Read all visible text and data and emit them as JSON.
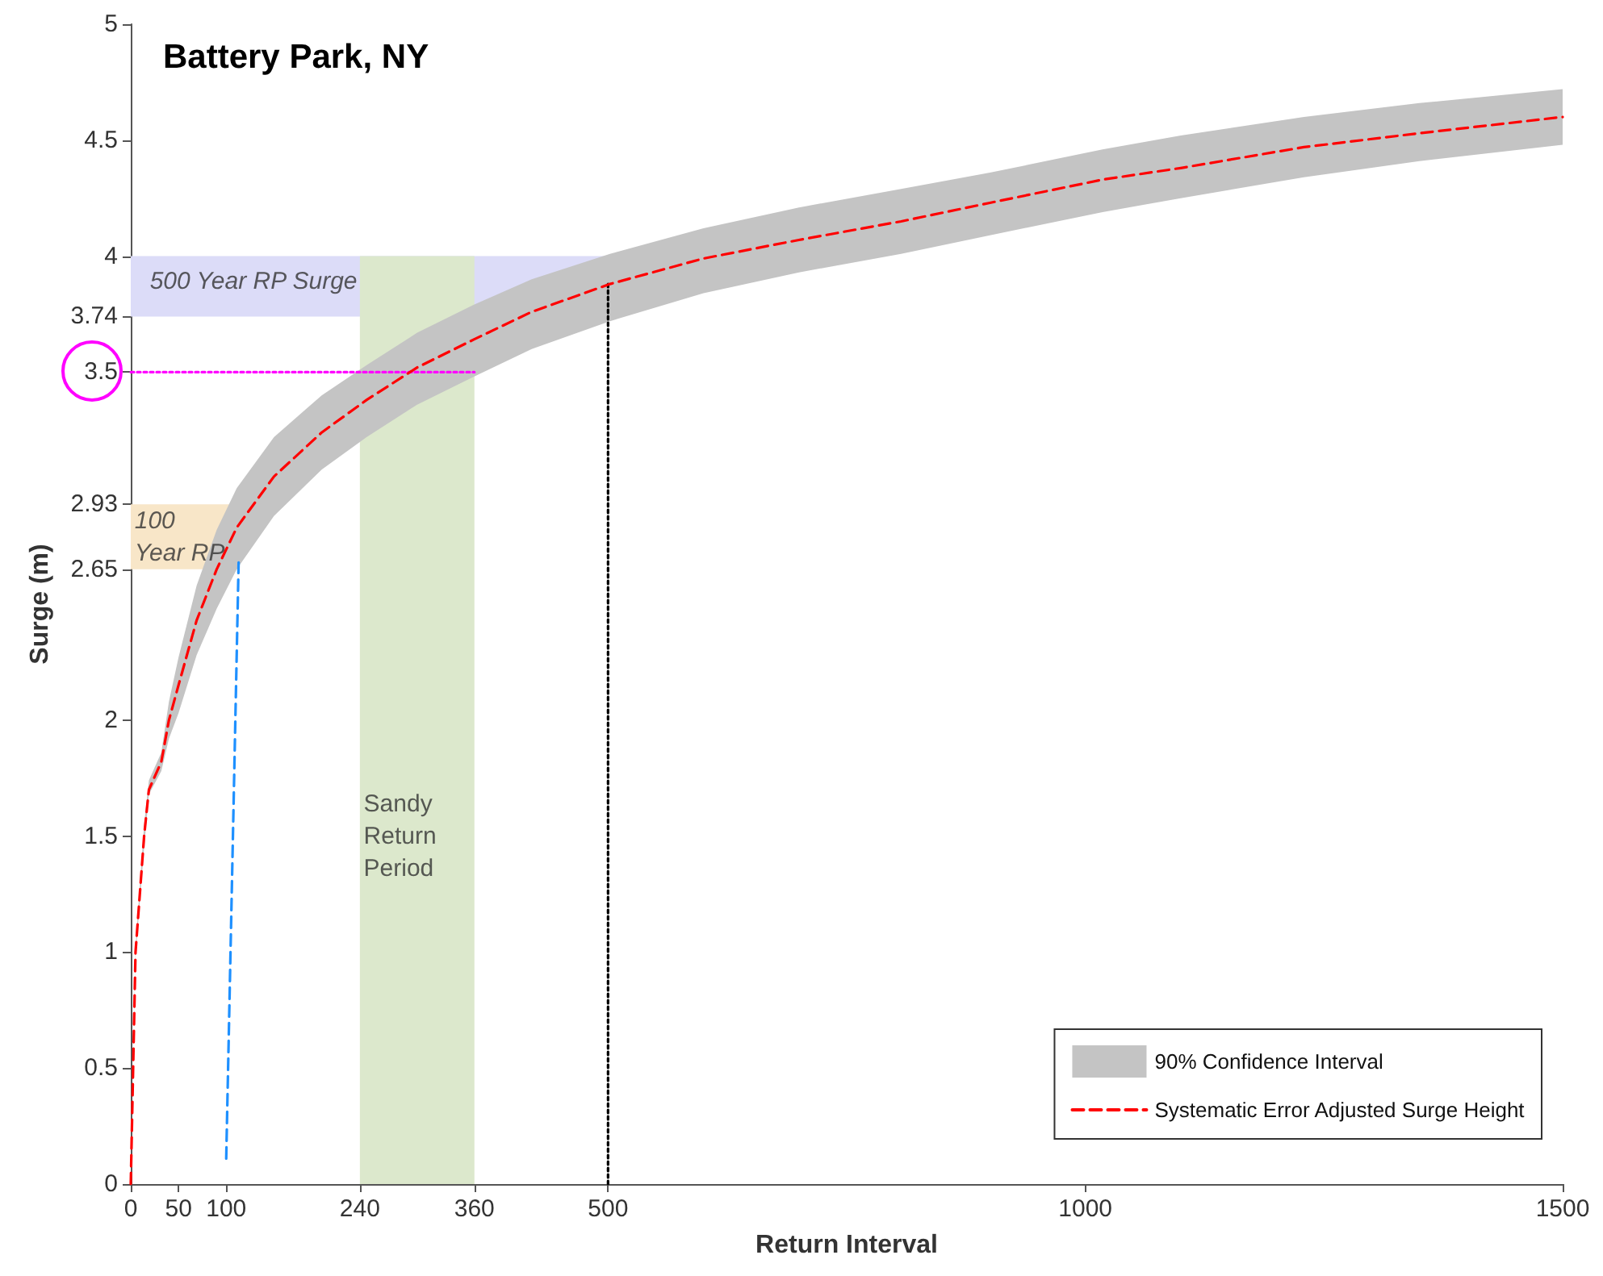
{
  "chart_data": {
    "type": "line",
    "title": "Battery Park, NY",
    "xlabel": "Return Interval",
    "ylabel": "Surge (m)",
    "xlim": [
      0,
      1500
    ],
    "xticks": [
      0,
      50,
      100,
      240,
      360,
      500,
      1000,
      1500
    ],
    "ylim": [
      0,
      5
    ],
    "yticks": [
      0,
      0.5,
      1,
      1.5,
      2,
      2.65,
      2.93,
      3.5,
      3.74,
      4,
      4.5,
      5
    ],
    "grid": false,
    "legend": "bottom right",
    "bands": [
      {
        "axis": "y",
        "from": 3.74,
        "to": 4,
        "label": "500 Year RP Surge",
        "color": "#dcdcf8"
      },
      {
        "axis": "y",
        "from": 2.65,
        "to": 2.93,
        "label": "100 Year RP",
        "color": "#f8e6c8"
      },
      {
        "axis": "x",
        "from": 240,
        "to": 360,
        "label": "Sandy Return Period",
        "color": "#dce8cc"
      }
    ],
    "series": [
      {
        "name": "90% Confidence Interval",
        "type": "area",
        "color": "#c4c4c4"
      },
      {
        "type": "line",
        "color": "#ff00ff",
        "line_style": "dotted",
        "x": [
          0,
          360
        ],
        "values": [
          3.5,
          3.5
        ]
      },
      {
        "type": "line",
        "color": "#1e90ff",
        "line_style": "dashed",
        "x": [
          100,
          113
        ],
        "values": [
          0.11,
          2.68
        ]
      },
      {
        "type": "line",
        "color": "#000000",
        "line_style": "dotted",
        "x": [
          500,
          500
        ],
        "values": [
          0,
          3.88
        ]
      },
      {
        "name": "Systematic Error Adjusted Surge Height",
        "color": "#ff0000",
        "line_style": "dashed",
        "x": [
          0,
          5,
          14,
          19,
          32,
          40,
          50,
          69,
          90,
          111,
          150,
          200,
          247,
          300,
          359,
          420,
          502,
          600,
          700,
          807,
          900,
          1018,
          1100,
          1229,
          1350,
          1500
        ],
        "values": [
          0,
          1.0,
          1.5,
          1.7,
          1.82,
          2.0,
          2.15,
          2.43,
          2.65,
          2.83,
          3.05,
          3.24,
          3.38,
          3.52,
          3.64,
          3.76,
          3.88,
          3.99,
          4.07,
          4.15,
          4.23,
          4.33,
          4.38,
          4.47,
          4.53,
          4.6
        ],
        "lower": [
          0,
          0.98,
          1.45,
          1.68,
          1.78,
          1.92,
          2.03,
          2.28,
          2.48,
          2.65,
          2.88,
          3.08,
          3.22,
          3.36,
          3.48,
          3.6,
          3.72,
          3.84,
          3.93,
          4.01,
          4.09,
          4.19,
          4.25,
          4.34,
          4.41,
          4.48
        ],
        "upper": [
          0,
          1.02,
          1.55,
          1.74,
          1.86,
          2.08,
          2.27,
          2.58,
          2.82,
          3.0,
          3.22,
          3.4,
          3.53,
          3.67,
          3.79,
          3.9,
          4.01,
          4.12,
          4.21,
          4.29,
          4.36,
          4.46,
          4.52,
          4.6,
          4.66,
          4.72
        ]
      }
    ]
  }
}
